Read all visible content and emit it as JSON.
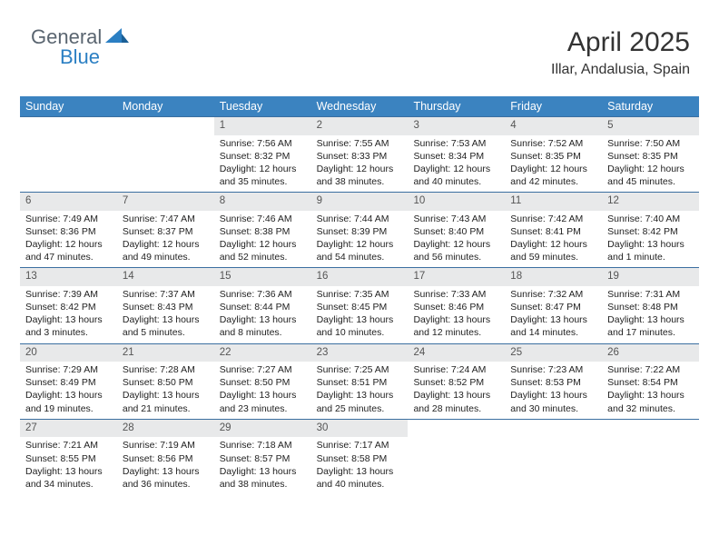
{
  "logo": {
    "text1": "General",
    "text2": "Blue"
  },
  "header": {
    "month": "April 2025",
    "location": "Illar, Andalusia, Spain"
  },
  "colors": {
    "header_bg": "#3b83c0",
    "header_text": "#ffffff",
    "row_border": "#3b6fa0",
    "daynum_bg": "#e8e9ea",
    "logo_gray": "#5a6570",
    "logo_blue": "#2b7fc3"
  },
  "weekdays": [
    "Sunday",
    "Monday",
    "Tuesday",
    "Wednesday",
    "Thursday",
    "Friday",
    "Saturday"
  ],
  "weeks": [
    [
      {
        "empty": true
      },
      {
        "empty": true
      },
      {
        "num": "1",
        "sunrise": "7:56 AM",
        "sunset": "8:32 PM",
        "daylight": "12 hours and 35 minutes."
      },
      {
        "num": "2",
        "sunrise": "7:55 AM",
        "sunset": "8:33 PM",
        "daylight": "12 hours and 38 minutes."
      },
      {
        "num": "3",
        "sunrise": "7:53 AM",
        "sunset": "8:34 PM",
        "daylight": "12 hours and 40 minutes."
      },
      {
        "num": "4",
        "sunrise": "7:52 AM",
        "sunset": "8:35 PM",
        "daylight": "12 hours and 42 minutes."
      },
      {
        "num": "5",
        "sunrise": "7:50 AM",
        "sunset": "8:35 PM",
        "daylight": "12 hours and 45 minutes."
      }
    ],
    [
      {
        "num": "6",
        "sunrise": "7:49 AM",
        "sunset": "8:36 PM",
        "daylight": "12 hours and 47 minutes."
      },
      {
        "num": "7",
        "sunrise": "7:47 AM",
        "sunset": "8:37 PM",
        "daylight": "12 hours and 49 minutes."
      },
      {
        "num": "8",
        "sunrise": "7:46 AM",
        "sunset": "8:38 PM",
        "daylight": "12 hours and 52 minutes."
      },
      {
        "num": "9",
        "sunrise": "7:44 AM",
        "sunset": "8:39 PM",
        "daylight": "12 hours and 54 minutes."
      },
      {
        "num": "10",
        "sunrise": "7:43 AM",
        "sunset": "8:40 PM",
        "daylight": "12 hours and 56 minutes."
      },
      {
        "num": "11",
        "sunrise": "7:42 AM",
        "sunset": "8:41 PM",
        "daylight": "12 hours and 59 minutes."
      },
      {
        "num": "12",
        "sunrise": "7:40 AM",
        "sunset": "8:42 PM",
        "daylight": "13 hours and 1 minute."
      }
    ],
    [
      {
        "num": "13",
        "sunrise": "7:39 AM",
        "sunset": "8:42 PM",
        "daylight": "13 hours and 3 minutes."
      },
      {
        "num": "14",
        "sunrise": "7:37 AM",
        "sunset": "8:43 PM",
        "daylight": "13 hours and 5 minutes."
      },
      {
        "num": "15",
        "sunrise": "7:36 AM",
        "sunset": "8:44 PM",
        "daylight": "13 hours and 8 minutes."
      },
      {
        "num": "16",
        "sunrise": "7:35 AM",
        "sunset": "8:45 PM",
        "daylight": "13 hours and 10 minutes."
      },
      {
        "num": "17",
        "sunrise": "7:33 AM",
        "sunset": "8:46 PM",
        "daylight": "13 hours and 12 minutes."
      },
      {
        "num": "18",
        "sunrise": "7:32 AM",
        "sunset": "8:47 PM",
        "daylight": "13 hours and 14 minutes."
      },
      {
        "num": "19",
        "sunrise": "7:31 AM",
        "sunset": "8:48 PM",
        "daylight": "13 hours and 17 minutes."
      }
    ],
    [
      {
        "num": "20",
        "sunrise": "7:29 AM",
        "sunset": "8:49 PM",
        "daylight": "13 hours and 19 minutes."
      },
      {
        "num": "21",
        "sunrise": "7:28 AM",
        "sunset": "8:50 PM",
        "daylight": "13 hours and 21 minutes."
      },
      {
        "num": "22",
        "sunrise": "7:27 AM",
        "sunset": "8:50 PM",
        "daylight": "13 hours and 23 minutes."
      },
      {
        "num": "23",
        "sunrise": "7:25 AM",
        "sunset": "8:51 PM",
        "daylight": "13 hours and 25 minutes."
      },
      {
        "num": "24",
        "sunrise": "7:24 AM",
        "sunset": "8:52 PM",
        "daylight": "13 hours and 28 minutes."
      },
      {
        "num": "25",
        "sunrise": "7:23 AM",
        "sunset": "8:53 PM",
        "daylight": "13 hours and 30 minutes."
      },
      {
        "num": "26",
        "sunrise": "7:22 AM",
        "sunset": "8:54 PM",
        "daylight": "13 hours and 32 minutes."
      }
    ],
    [
      {
        "num": "27",
        "sunrise": "7:21 AM",
        "sunset": "8:55 PM",
        "daylight": "13 hours and 34 minutes."
      },
      {
        "num": "28",
        "sunrise": "7:19 AM",
        "sunset": "8:56 PM",
        "daylight": "13 hours and 36 minutes."
      },
      {
        "num": "29",
        "sunrise": "7:18 AM",
        "sunset": "8:57 PM",
        "daylight": "13 hours and 38 minutes."
      },
      {
        "num": "30",
        "sunrise": "7:17 AM",
        "sunset": "8:58 PM",
        "daylight": "13 hours and 40 minutes."
      },
      {
        "empty": true
      },
      {
        "empty": true
      },
      {
        "empty": true
      }
    ]
  ],
  "labels": {
    "sunrise": "Sunrise:",
    "sunset": "Sunset:",
    "daylight": "Daylight:"
  }
}
